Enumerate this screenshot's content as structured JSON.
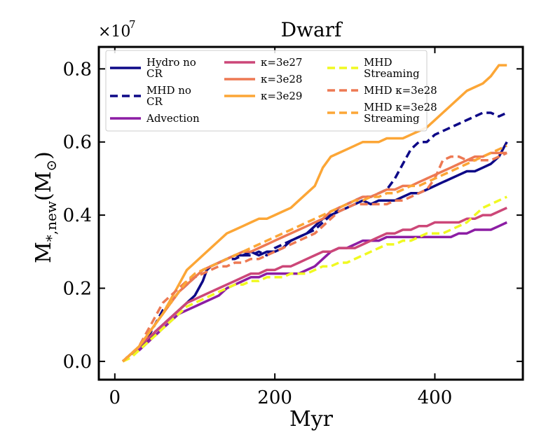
{
  "chart_data": {
    "type": "line",
    "title": "Dwarf",
    "xlabel": "Myr",
    "ylabel_main": "M",
    "ylabel_sub": "*,new",
    "ylabel_unit": "(M",
    "ylabel_unit_close": ")",
    "ylabel_sun": "⊙",
    "y_multiplier_label": "×10",
    "y_multiplier_exp": "7",
    "xlim": [
      -20,
      510
    ],
    "ylim": [
      -0.05,
      0.86
    ],
    "xticks": [
      0,
      200,
      400
    ],
    "xtick_labels": [
      "0",
      "200",
      "400"
    ],
    "yticks": [
      0.0,
      0.2,
      0.4,
      0.6,
      0.8
    ],
    "ytick_labels": [
      "0.0",
      "0.2",
      "0.4",
      "0.6",
      "0.8"
    ],
    "legend_position": "top-left",
    "series": [
      {
        "name_lines": [
          "Hydro no",
          "CR"
        ],
        "color": "#0d0887",
        "dash": "solid",
        "x": [
          10,
          20,
          30,
          40,
          50,
          60,
          70,
          80,
          90,
          100,
          110,
          115,
          120,
          130,
          140,
          150,
          160,
          170,
          180,
          190,
          200,
          210,
          220,
          230,
          240,
          250,
          260,
          270,
          280,
          290,
          300,
          310,
          320,
          330,
          340,
          350,
          360,
          370,
          380,
          390,
          400,
          410,
          420,
          430,
          440,
          450,
          460,
          470,
          480,
          490
        ],
        "y": [
          0.0,
          0.02,
          0.03,
          0.05,
          0.08,
          0.1,
          0.12,
          0.14,
          0.16,
          0.18,
          0.22,
          0.25,
          0.26,
          0.27,
          0.28,
          0.29,
          0.29,
          0.3,
          0.29,
          0.3,
          0.3,
          0.31,
          0.33,
          0.34,
          0.35,
          0.37,
          0.39,
          0.4,
          0.41,
          0.42,
          0.43,
          0.44,
          0.43,
          0.44,
          0.44,
          0.44,
          0.45,
          0.46,
          0.46,
          0.47,
          0.48,
          0.49,
          0.5,
          0.51,
          0.52,
          0.52,
          0.53,
          0.54,
          0.56,
          0.6
        ]
      },
      {
        "name_lines": [
          "MHD no",
          "CR"
        ],
        "color": "#0d0887",
        "dash": "dashed",
        "x": [
          10,
          20,
          30,
          40,
          50,
          60,
          70,
          80,
          90,
          100,
          110,
          120,
          130,
          140,
          150,
          160,
          170,
          180,
          190,
          200,
          210,
          220,
          230,
          240,
          250,
          260,
          270,
          280,
          290,
          300,
          310,
          320,
          330,
          340,
          350,
          360,
          370,
          380,
          390,
          400,
          410,
          420,
          430,
          440,
          450,
          460,
          470,
          480,
          490
        ],
        "y": [
          0.0,
          0.02,
          0.03,
          0.06,
          0.1,
          0.14,
          0.16,
          0.19,
          0.21,
          0.23,
          0.25,
          0.26,
          0.27,
          0.28,
          0.28,
          0.29,
          0.29,
          0.3,
          0.29,
          0.31,
          0.32,
          0.33,
          0.34,
          0.35,
          0.36,
          0.38,
          0.4,
          0.42,
          0.43,
          0.44,
          0.45,
          0.45,
          0.46,
          0.47,
          0.5,
          0.54,
          0.58,
          0.6,
          0.6,
          0.62,
          0.63,
          0.64,
          0.65,
          0.66,
          0.67,
          0.68,
          0.68,
          0.67,
          0.68
        ]
      },
      {
        "name_lines": [
          "Advection"
        ],
        "color": "#8c1da4",
        "dash": "solid",
        "x": [
          10,
          20,
          30,
          40,
          50,
          60,
          70,
          80,
          90,
          100,
          110,
          120,
          130,
          140,
          150,
          160,
          170,
          180,
          190,
          200,
          210,
          220,
          230,
          240,
          250,
          260,
          270,
          280,
          290,
          300,
          310,
          320,
          330,
          340,
          350,
          360,
          370,
          380,
          390,
          400,
          410,
          420,
          430,
          440,
          450,
          460,
          470,
          480,
          490
        ],
        "y": [
          0.0,
          0.02,
          0.03,
          0.05,
          0.07,
          0.09,
          0.11,
          0.13,
          0.14,
          0.15,
          0.16,
          0.17,
          0.18,
          0.2,
          0.21,
          0.22,
          0.23,
          0.23,
          0.24,
          0.24,
          0.24,
          0.24,
          0.24,
          0.25,
          0.26,
          0.28,
          0.3,
          0.31,
          0.31,
          0.32,
          0.33,
          0.33,
          0.33,
          0.34,
          0.34,
          0.34,
          0.34,
          0.34,
          0.34,
          0.34,
          0.34,
          0.34,
          0.35,
          0.35,
          0.36,
          0.36,
          0.36,
          0.37,
          0.38
        ]
      },
      {
        "name_lines": [
          "κ=3e27"
        ],
        "color": "#cc4778",
        "dash": "solid",
        "x": [
          10,
          20,
          30,
          40,
          50,
          60,
          70,
          80,
          90,
          100,
          110,
          120,
          130,
          140,
          150,
          160,
          170,
          180,
          190,
          200,
          210,
          220,
          230,
          240,
          250,
          260,
          270,
          280,
          290,
          300,
          310,
          320,
          330,
          340,
          350,
          360,
          370,
          380,
          390,
          400,
          410,
          420,
          430,
          440,
          450,
          460,
          470,
          480,
          490
        ],
        "y": [
          0.0,
          0.02,
          0.04,
          0.06,
          0.08,
          0.1,
          0.12,
          0.14,
          0.16,
          0.17,
          0.18,
          0.19,
          0.2,
          0.21,
          0.22,
          0.23,
          0.24,
          0.24,
          0.25,
          0.25,
          0.26,
          0.26,
          0.27,
          0.28,
          0.29,
          0.3,
          0.3,
          0.31,
          0.31,
          0.31,
          0.32,
          0.33,
          0.34,
          0.35,
          0.35,
          0.36,
          0.36,
          0.37,
          0.37,
          0.38,
          0.38,
          0.38,
          0.38,
          0.39,
          0.39,
          0.4,
          0.4,
          0.41,
          0.42
        ]
      },
      {
        "name_lines": [
          "κ=3e28"
        ],
        "color": "#ed7953",
        "dash": "solid",
        "x": [
          10,
          20,
          30,
          40,
          50,
          60,
          70,
          80,
          90,
          100,
          110,
          120,
          130,
          140,
          150,
          160,
          170,
          180,
          190,
          200,
          210,
          220,
          230,
          240,
          250,
          260,
          270,
          280,
          290,
          300,
          310,
          320,
          330,
          340,
          350,
          360,
          370,
          380,
          390,
          400,
          410,
          420,
          430,
          440,
          450,
          460,
          470,
          480,
          490
        ],
        "y": [
          0.0,
          0.02,
          0.04,
          0.07,
          0.1,
          0.13,
          0.16,
          0.19,
          0.21,
          0.23,
          0.25,
          0.26,
          0.27,
          0.28,
          0.29,
          0.3,
          0.3,
          0.31,
          0.32,
          0.33,
          0.34,
          0.35,
          0.36,
          0.37,
          0.38,
          0.39,
          0.41,
          0.42,
          0.43,
          0.44,
          0.45,
          0.45,
          0.46,
          0.47,
          0.47,
          0.48,
          0.48,
          0.49,
          0.5,
          0.51,
          0.52,
          0.53,
          0.54,
          0.55,
          0.56,
          0.56,
          0.57,
          0.57,
          0.57
        ]
      },
      {
        "name_lines": [
          "κ=3e29"
        ],
        "color": "#fca636",
        "dash": "solid",
        "x": [
          10,
          20,
          30,
          40,
          50,
          60,
          70,
          80,
          90,
          100,
          110,
          120,
          130,
          140,
          150,
          160,
          170,
          180,
          190,
          200,
          210,
          220,
          230,
          240,
          250,
          260,
          270,
          280,
          290,
          300,
          310,
          320,
          330,
          340,
          350,
          360,
          370,
          380,
          390,
          400,
          410,
          420,
          430,
          440,
          450,
          460,
          470,
          480,
          490
        ],
        "y": [
          0.0,
          0.02,
          0.04,
          0.07,
          0.1,
          0.13,
          0.17,
          0.21,
          0.25,
          0.27,
          0.29,
          0.31,
          0.33,
          0.35,
          0.36,
          0.37,
          0.38,
          0.39,
          0.39,
          0.4,
          0.41,
          0.42,
          0.44,
          0.46,
          0.48,
          0.53,
          0.56,
          0.57,
          0.58,
          0.59,
          0.6,
          0.6,
          0.6,
          0.61,
          0.61,
          0.61,
          0.62,
          0.63,
          0.64,
          0.66,
          0.68,
          0.7,
          0.72,
          0.74,
          0.75,
          0.76,
          0.78,
          0.81,
          0.81
        ]
      },
      {
        "name_lines": [
          "MHD",
          "Streaming"
        ],
        "color": "#f0f921",
        "dash": "dashed",
        "x": [
          10,
          20,
          30,
          40,
          50,
          60,
          70,
          80,
          90,
          100,
          110,
          120,
          130,
          140,
          150,
          160,
          170,
          180,
          190,
          200,
          210,
          220,
          230,
          240,
          250,
          260,
          270,
          280,
          290,
          300,
          310,
          320,
          330,
          340,
          350,
          360,
          370,
          380,
          390,
          400,
          410,
          420,
          430,
          440,
          450,
          460,
          470,
          480,
          490
        ],
        "y": [
          0.0,
          0.01,
          0.03,
          0.05,
          0.07,
          0.09,
          0.11,
          0.13,
          0.15,
          0.16,
          0.17,
          0.18,
          0.19,
          0.2,
          0.21,
          0.21,
          0.22,
          0.22,
          0.23,
          0.23,
          0.23,
          0.24,
          0.24,
          0.24,
          0.25,
          0.26,
          0.26,
          0.27,
          0.27,
          0.28,
          0.29,
          0.3,
          0.31,
          0.32,
          0.32,
          0.33,
          0.33,
          0.34,
          0.35,
          0.35,
          0.35,
          0.36,
          0.37,
          0.38,
          0.4,
          0.42,
          0.43,
          0.44,
          0.45
        ]
      },
      {
        "name_lines": [
          "MHD κ=3e28"
        ],
        "color": "#ed7953",
        "dash": "dashed",
        "x": [
          10,
          20,
          30,
          40,
          50,
          60,
          70,
          80,
          90,
          100,
          110,
          120,
          130,
          140,
          150,
          160,
          170,
          180,
          190,
          200,
          210,
          220,
          230,
          240,
          250,
          260,
          270,
          280,
          290,
          300,
          310,
          320,
          330,
          340,
          350,
          360,
          370,
          380,
          390,
          400,
          410,
          420,
          430,
          440,
          450,
          460,
          470,
          480,
          490
        ],
        "y": [
          0.0,
          0.02,
          0.04,
          0.08,
          0.12,
          0.16,
          0.18,
          0.2,
          0.22,
          0.23,
          0.24,
          0.25,
          0.26,
          0.26,
          0.27,
          0.27,
          0.28,
          0.28,
          0.29,
          0.3,
          0.31,
          0.32,
          0.33,
          0.34,
          0.35,
          0.37,
          0.39,
          0.41,
          0.42,
          0.43,
          0.43,
          0.43,
          0.43,
          0.43,
          0.44,
          0.44,
          0.45,
          0.46,
          0.47,
          0.5,
          0.55,
          0.56,
          0.56,
          0.55,
          0.55,
          0.55,
          0.55,
          0.56,
          0.57
        ]
      },
      {
        "name_lines": [
          "MHD κ=3e28",
          "Streaming"
        ],
        "color": "#fca636",
        "dash": "dashed",
        "x": [
          10,
          20,
          30,
          40,
          50,
          60,
          70,
          80,
          90,
          100,
          110,
          120,
          130,
          140,
          150,
          160,
          170,
          180,
          190,
          200,
          210,
          220,
          230,
          240,
          250,
          260,
          270,
          280,
          290,
          300,
          310,
          320,
          330,
          340,
          350,
          360,
          370,
          380,
          390,
          400,
          410,
          420,
          430,
          440,
          450,
          460,
          470,
          480,
          490
        ],
        "y": [
          0.0,
          0.02,
          0.04,
          0.07,
          0.1,
          0.13,
          0.16,
          0.19,
          0.22,
          0.24,
          0.25,
          0.26,
          0.27,
          0.28,
          0.29,
          0.3,
          0.31,
          0.32,
          0.33,
          0.34,
          0.35,
          0.36,
          0.37,
          0.38,
          0.39,
          0.4,
          0.41,
          0.42,
          0.43,
          0.44,
          0.44,
          0.45,
          0.45,
          0.46,
          0.46,
          0.47,
          0.48,
          0.48,
          0.49,
          0.5,
          0.51,
          0.52,
          0.53,
          0.54,
          0.55,
          0.56,
          0.57,
          0.58,
          0.59
        ]
      }
    ]
  }
}
